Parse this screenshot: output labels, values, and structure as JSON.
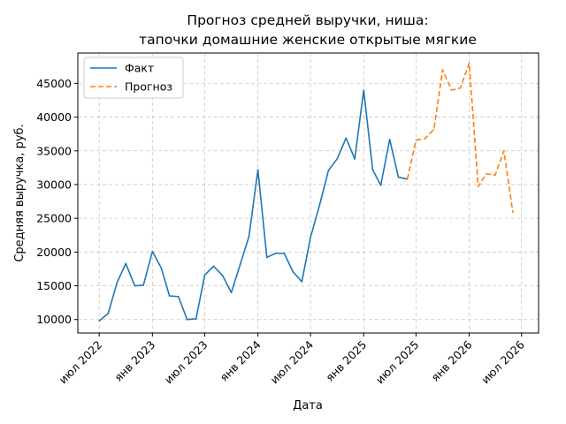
{
  "chart_data": {
    "type": "line",
    "title": "Прогноз средней выручки, ниша:",
    "subtitle": "тапочки домашние женские открытые мягкие",
    "xlabel": "Дата",
    "ylabel": "Средняя выручка, руб.",
    "ylim": [
      8000,
      49500
    ],
    "yticks": [
      10000,
      15000,
      20000,
      25000,
      30000,
      35000,
      40000,
      45000
    ],
    "xlim": [
      "2022-04-18",
      "2026-08-29"
    ],
    "xticks": [
      {
        "date": "2022-07-01",
        "label": "июл 2022"
      },
      {
        "date": "2023-01-01",
        "label": "янв 2023"
      },
      {
        "date": "2023-07-01",
        "label": "июл 2023"
      },
      {
        "date": "2024-01-01",
        "label": "янв 2024"
      },
      {
        "date": "2024-07-01",
        "label": "июл 2024"
      },
      {
        "date": "2025-01-01",
        "label": "янв 2025"
      },
      {
        "date": "2025-07-01",
        "label": "июл 2025"
      },
      {
        "date": "2026-01-01",
        "label": "янв 2026"
      },
      {
        "date": "2026-07-01",
        "label": "июл 2026"
      }
    ],
    "grid": true,
    "legend_position": "top-left",
    "series": [
      {
        "name": "Факт",
        "color": "#1f77b4",
        "style": "solid",
        "points": [
          {
            "x": "2022-07-01",
            "y": 9800
          },
          {
            "x": "2022-08-01",
            "y": 10900
          },
          {
            "x": "2022-09-01",
            "y": 15500
          },
          {
            "x": "2022-10-01",
            "y": 18300
          },
          {
            "x": "2022-11-01",
            "y": 15000
          },
          {
            "x": "2022-12-01",
            "y": 15100
          },
          {
            "x": "2023-01-01",
            "y": 20100
          },
          {
            "x": "2023-02-01",
            "y": 17600
          },
          {
            "x": "2023-03-01",
            "y": 13500
          },
          {
            "x": "2023-04-01",
            "y": 13400
          },
          {
            "x": "2023-05-01",
            "y": 10000
          },
          {
            "x": "2023-06-01",
            "y": 10100
          },
          {
            "x": "2023-07-01",
            "y": 16600
          },
          {
            "x": "2023-08-01",
            "y": 17900
          },
          {
            "x": "2023-09-01",
            "y": 16500
          },
          {
            "x": "2023-10-01",
            "y": 14000
          },
          {
            "x": "2023-11-01",
            "y": 18200
          },
          {
            "x": "2023-12-01",
            "y": 22300
          },
          {
            "x": "2024-01-01",
            "y": 32200
          },
          {
            "x": "2024-02-01",
            "y": 19200
          },
          {
            "x": "2024-03-01",
            "y": 19800
          },
          {
            "x": "2024-04-01",
            "y": 19800
          },
          {
            "x": "2024-05-01",
            "y": 17100
          },
          {
            "x": "2024-06-01",
            "y": 15600
          },
          {
            "x": "2024-07-01",
            "y": 22200
          },
          {
            "x": "2024-08-01",
            "y": 26900
          },
          {
            "x": "2024-09-01",
            "y": 32100
          },
          {
            "x": "2024-10-01",
            "y": 33800
          },
          {
            "x": "2024-11-01",
            "y": 36900
          },
          {
            "x": "2024-12-01",
            "y": 33800
          },
          {
            "x": "2025-01-01",
            "y": 44000
          },
          {
            "x": "2025-02-01",
            "y": 32200
          },
          {
            "x": "2025-03-01",
            "y": 29900
          },
          {
            "x": "2025-04-01",
            "y": 36700
          },
          {
            "x": "2025-05-01",
            "y": 31100
          },
          {
            "x": "2025-06-01",
            "y": 30800
          }
        ]
      },
      {
        "name": "Прогноз",
        "color": "#ff7f0e",
        "style": "dashed",
        "points": [
          {
            "x": "2025-06-01",
            "y": 30800
          },
          {
            "x": "2025-07-01",
            "y": 36600
          },
          {
            "x": "2025-08-01",
            "y": 36800
          },
          {
            "x": "2025-09-01",
            "y": 38200
          },
          {
            "x": "2025-10-01",
            "y": 47000
          },
          {
            "x": "2025-11-01",
            "y": 44000
          },
          {
            "x": "2025-12-01",
            "y": 44300
          },
          {
            "x": "2026-01-01",
            "y": 48000
          },
          {
            "x": "2026-02-01",
            "y": 29700
          },
          {
            "x": "2026-03-01",
            "y": 31600
          },
          {
            "x": "2026-04-01",
            "y": 31400
          },
          {
            "x": "2026-05-01",
            "y": 35000
          },
          {
            "x": "2026-06-01",
            "y": 25900
          }
        ]
      }
    ]
  }
}
